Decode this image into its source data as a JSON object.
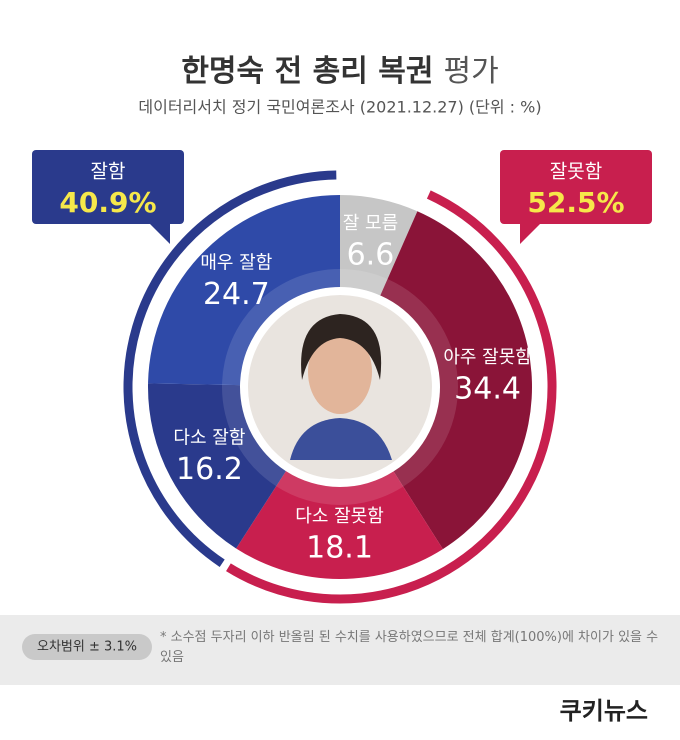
{
  "chart_data": {
    "type": "donut",
    "title": "한명숙 전 총리 복권",
    "title_suffix": "평가",
    "subtitle": "데이터리서치 정기 국민여론조사 (2021.12.27)  (단위 : %)",
    "categories": [
      "잘 모름",
      "아주 잘못함",
      "다소 잘못함",
      "다소 잘함",
      "매우 잘함"
    ],
    "values": [
      6.6,
      34.4,
      18.1,
      16.2,
      24.7
    ],
    "colors": [
      "#c6c6c6",
      "#8a1438",
      "#c81f4e",
      "#2a3a8c",
      "#2f4aa8"
    ],
    "groups": [
      {
        "name": "잘함",
        "value": 40.9,
        "value_label": "40.9%",
        "color": "#2a3a8c"
      },
      {
        "name": "잘못함",
        "value": 52.5,
        "value_label": "52.5%",
        "color": "#c81f4e"
      }
    ],
    "error_margin": "오차범위 ± 3.1%",
    "note": "* 소수점 두자리 이하 반올림 된 수치를 사용하였으므로 전체 합계(100%)에 차이가 있을 수 있음",
    "logo": "쿠키뉴스"
  }
}
